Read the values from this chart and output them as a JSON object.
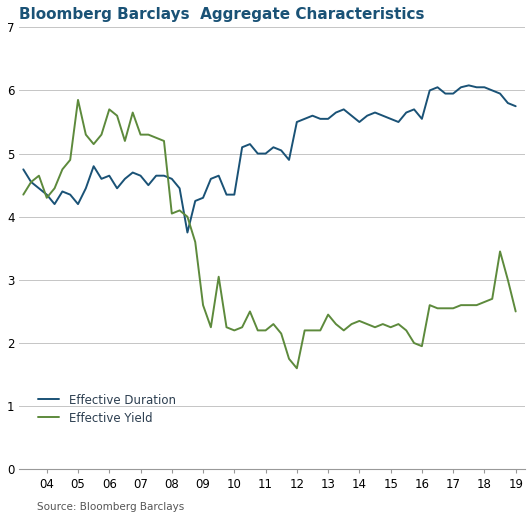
{
  "title": "Bloomberg Barclays  Aggregate Characteristics",
  "source": "Source: Bloomberg Barclays",
  "duration_x": [
    2003.25,
    2003.5,
    2003.75,
    2004.0,
    2004.25,
    2004.5,
    2004.75,
    2005.0,
    2005.25,
    2005.5,
    2005.75,
    2006.0,
    2006.25,
    2006.5,
    2006.75,
    2007.0,
    2007.25,
    2007.5,
    2007.75,
    2008.0,
    2008.25,
    2008.5,
    2008.75,
    2009.0,
    2009.25,
    2009.5,
    2009.75,
    2010.0,
    2010.25,
    2010.5,
    2010.75,
    2011.0,
    2011.25,
    2011.5,
    2011.75,
    2012.0,
    2012.25,
    2012.5,
    2012.75,
    2013.0,
    2013.25,
    2013.5,
    2013.75,
    2014.0,
    2014.25,
    2014.5,
    2014.75,
    2015.0,
    2015.25,
    2015.5,
    2015.75,
    2016.0,
    2016.25,
    2016.5,
    2016.75,
    2017.0,
    2017.25,
    2017.5,
    2017.75,
    2018.0,
    2018.25,
    2018.5,
    2018.75,
    2019.0
  ],
  "duration_y": [
    4.75,
    4.55,
    4.45,
    4.35,
    4.2,
    4.4,
    4.35,
    4.2,
    4.45,
    4.8,
    4.6,
    4.65,
    4.45,
    4.6,
    4.7,
    4.65,
    4.5,
    4.65,
    4.65,
    4.6,
    4.45,
    3.75,
    4.25,
    4.3,
    4.6,
    4.65,
    4.35,
    4.35,
    5.1,
    5.15,
    5.0,
    5.0,
    5.1,
    5.05,
    4.9,
    5.5,
    5.55,
    5.6,
    5.55,
    5.55,
    5.65,
    5.7,
    5.6,
    5.5,
    5.6,
    5.65,
    5.6,
    5.55,
    5.5,
    5.65,
    5.7,
    5.55,
    6.0,
    6.05,
    5.95,
    5.95,
    6.05,
    6.08,
    6.05,
    6.05,
    6.0,
    5.95,
    5.8,
    5.75
  ],
  "yield_x": [
    2003.25,
    2003.5,
    2003.75,
    2004.0,
    2004.25,
    2004.5,
    2004.75,
    2005.0,
    2005.25,
    2005.5,
    2005.75,
    2006.0,
    2006.25,
    2006.5,
    2006.75,
    2007.0,
    2007.25,
    2007.5,
    2007.75,
    2008.0,
    2008.25,
    2008.5,
    2008.75,
    2009.0,
    2009.25,
    2009.5,
    2009.75,
    2010.0,
    2010.25,
    2010.5,
    2010.75,
    2011.0,
    2011.25,
    2011.5,
    2011.75,
    2012.0,
    2012.25,
    2012.5,
    2012.75,
    2013.0,
    2013.25,
    2013.5,
    2013.75,
    2014.0,
    2014.25,
    2014.5,
    2014.75,
    2015.0,
    2015.25,
    2015.5,
    2015.75,
    2016.0,
    2016.25,
    2016.5,
    2016.75,
    2017.0,
    2017.25,
    2017.5,
    2017.75,
    2018.0,
    2018.25,
    2018.5,
    2018.75,
    2019.0
  ],
  "yield_y": [
    4.35,
    4.55,
    4.65,
    4.3,
    4.45,
    4.75,
    4.9,
    5.85,
    5.3,
    5.15,
    5.3,
    5.7,
    5.6,
    5.2,
    5.65,
    5.3,
    5.3,
    5.25,
    5.2,
    4.05,
    4.1,
    4.0,
    3.6,
    2.6,
    2.25,
    3.05,
    2.25,
    2.2,
    2.25,
    2.5,
    2.2,
    2.2,
    2.3,
    2.15,
    1.75,
    1.6,
    2.2,
    2.2,
    2.2,
    2.45,
    2.3,
    2.2,
    2.3,
    2.35,
    2.3,
    2.25,
    2.3,
    2.25,
    2.3,
    2.2,
    2.0,
    1.95,
    2.6,
    2.55,
    2.55,
    2.55,
    2.6,
    2.6,
    2.6,
    2.65,
    2.7,
    3.45,
    3.0,
    2.5
  ],
  "duration_color": "#1a5276",
  "yield_color": "#5d8a3c",
  "title_color": "#1a5276",
  "legend_text_color": "#2c3e50",
  "source_text_color": "#555555",
  "grid_color": "#bbbbbb",
  "spine_color": "#999999",
  "ylim": [
    0,
    7
  ],
  "yticks": [
    0,
    1,
    2,
    3,
    4,
    5,
    6,
    7
  ],
  "xtick_positions": [
    2004,
    2005,
    2006,
    2007,
    2008,
    2009,
    2010,
    2011,
    2012,
    2013,
    2014,
    2015,
    2016,
    2017,
    2018,
    2019
  ],
  "xtick_labels": [
    "04",
    "05",
    "06",
    "07",
    "08",
    "09",
    "10",
    "11",
    "12",
    "13",
    "14",
    "15",
    "16",
    "17",
    "18",
    "19"
  ],
  "legend_labels": [
    "Effective Duration",
    "Effective Yield"
  ],
  "title_fontsize": 11,
  "tick_fontsize": 8.5,
  "source_fontsize": 7.5,
  "legend_fontsize": 8.5,
  "line_width": 1.4,
  "xlim_left": 2003.1,
  "xlim_right": 2019.3
}
